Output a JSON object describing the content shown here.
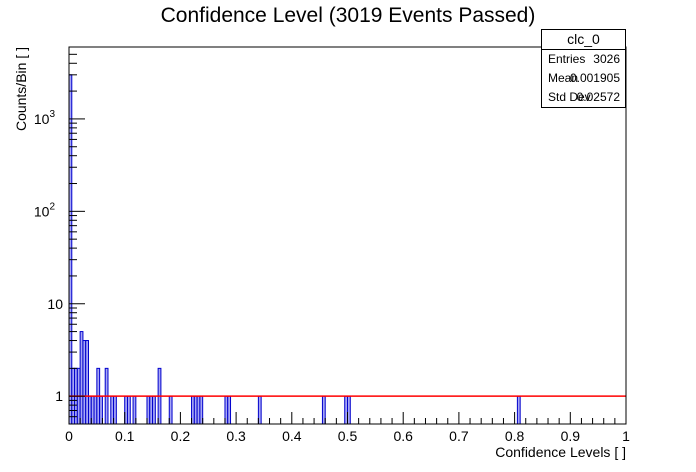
{
  "chart_data": {
    "type": "bar",
    "title": "Confidence Level (3019 Events Passed)",
    "xlabel": "Confidence Levels [ ]",
    "ylabel": "Counts/Bin [ ]",
    "xlim": [
      0,
      1
    ],
    "ylim": [
      0.5,
      6000
    ],
    "y_scale": "log",
    "bin_width": 0.005,
    "x_ticks": [
      "0",
      "0.1",
      "0.2",
      "0.3",
      "0.4",
      "0.5",
      "0.6",
      "0.7",
      "0.8",
      "0.9",
      "1"
    ],
    "y_ticks": [
      {
        "value": 1,
        "label": "1"
      },
      {
        "value": 10,
        "label": "10"
      },
      {
        "value": 100,
        "label": "10",
        "exp": "2"
      },
      {
        "value": 1000,
        "label": "10",
        "exp": "3"
      }
    ],
    "bins": [
      {
        "x": 0.0,
        "value": 3000
      },
      {
        "x": 0.005,
        "value": 2
      },
      {
        "x": 0.01,
        "value": 2
      },
      {
        "x": 0.015,
        "value": 2
      },
      {
        "x": 0.02,
        "value": 5
      },
      {
        "x": 0.025,
        "value": 4
      },
      {
        "x": 0.03,
        "value": 4
      },
      {
        "x": 0.035,
        "value": 1
      },
      {
        "x": 0.04,
        "value": 1
      },
      {
        "x": 0.045,
        "value": 1
      },
      {
        "x": 0.05,
        "value": 2
      },
      {
        "x": 0.055,
        "value": 1
      },
      {
        "x": 0.065,
        "value": 2
      },
      {
        "x": 0.075,
        "value": 1
      },
      {
        "x": 0.08,
        "value": 1
      },
      {
        "x": 0.1,
        "value": 1
      },
      {
        "x": 0.105,
        "value": 1
      },
      {
        "x": 0.115,
        "value": 1
      },
      {
        "x": 0.14,
        "value": 1
      },
      {
        "x": 0.145,
        "value": 1
      },
      {
        "x": 0.15,
        "value": 1
      },
      {
        "x": 0.16,
        "value": 2
      },
      {
        "x": 0.18,
        "value": 1
      },
      {
        "x": 0.22,
        "value": 1
      },
      {
        "x": 0.225,
        "value": 1
      },
      {
        "x": 0.23,
        "value": 1
      },
      {
        "x": 0.235,
        "value": 1
      },
      {
        "x": 0.28,
        "value": 1
      },
      {
        "x": 0.285,
        "value": 1
      },
      {
        "x": 0.34,
        "value": 1
      },
      {
        "x": 0.455,
        "value": 1
      },
      {
        "x": 0.495,
        "value": 1
      },
      {
        "x": 0.5,
        "value": 1
      },
      {
        "x": 0.805,
        "value": 1
      }
    ],
    "fit_line": {
      "x": [
        0,
        1
      ],
      "y": [
        1,
        1
      ],
      "color": "#ff0000"
    },
    "fill_color": "#a6a6f5",
    "edge_color": "#0000cc",
    "grid": false,
    "legend_position": "top-right"
  },
  "stats": {
    "name": "clc_0",
    "rows": [
      {
        "label": "Entries",
        "value": "3026"
      },
      {
        "label": "Mean",
        "value": "0.001905"
      },
      {
        "label": "Std Dev",
        "value": "0.02572"
      }
    ]
  }
}
